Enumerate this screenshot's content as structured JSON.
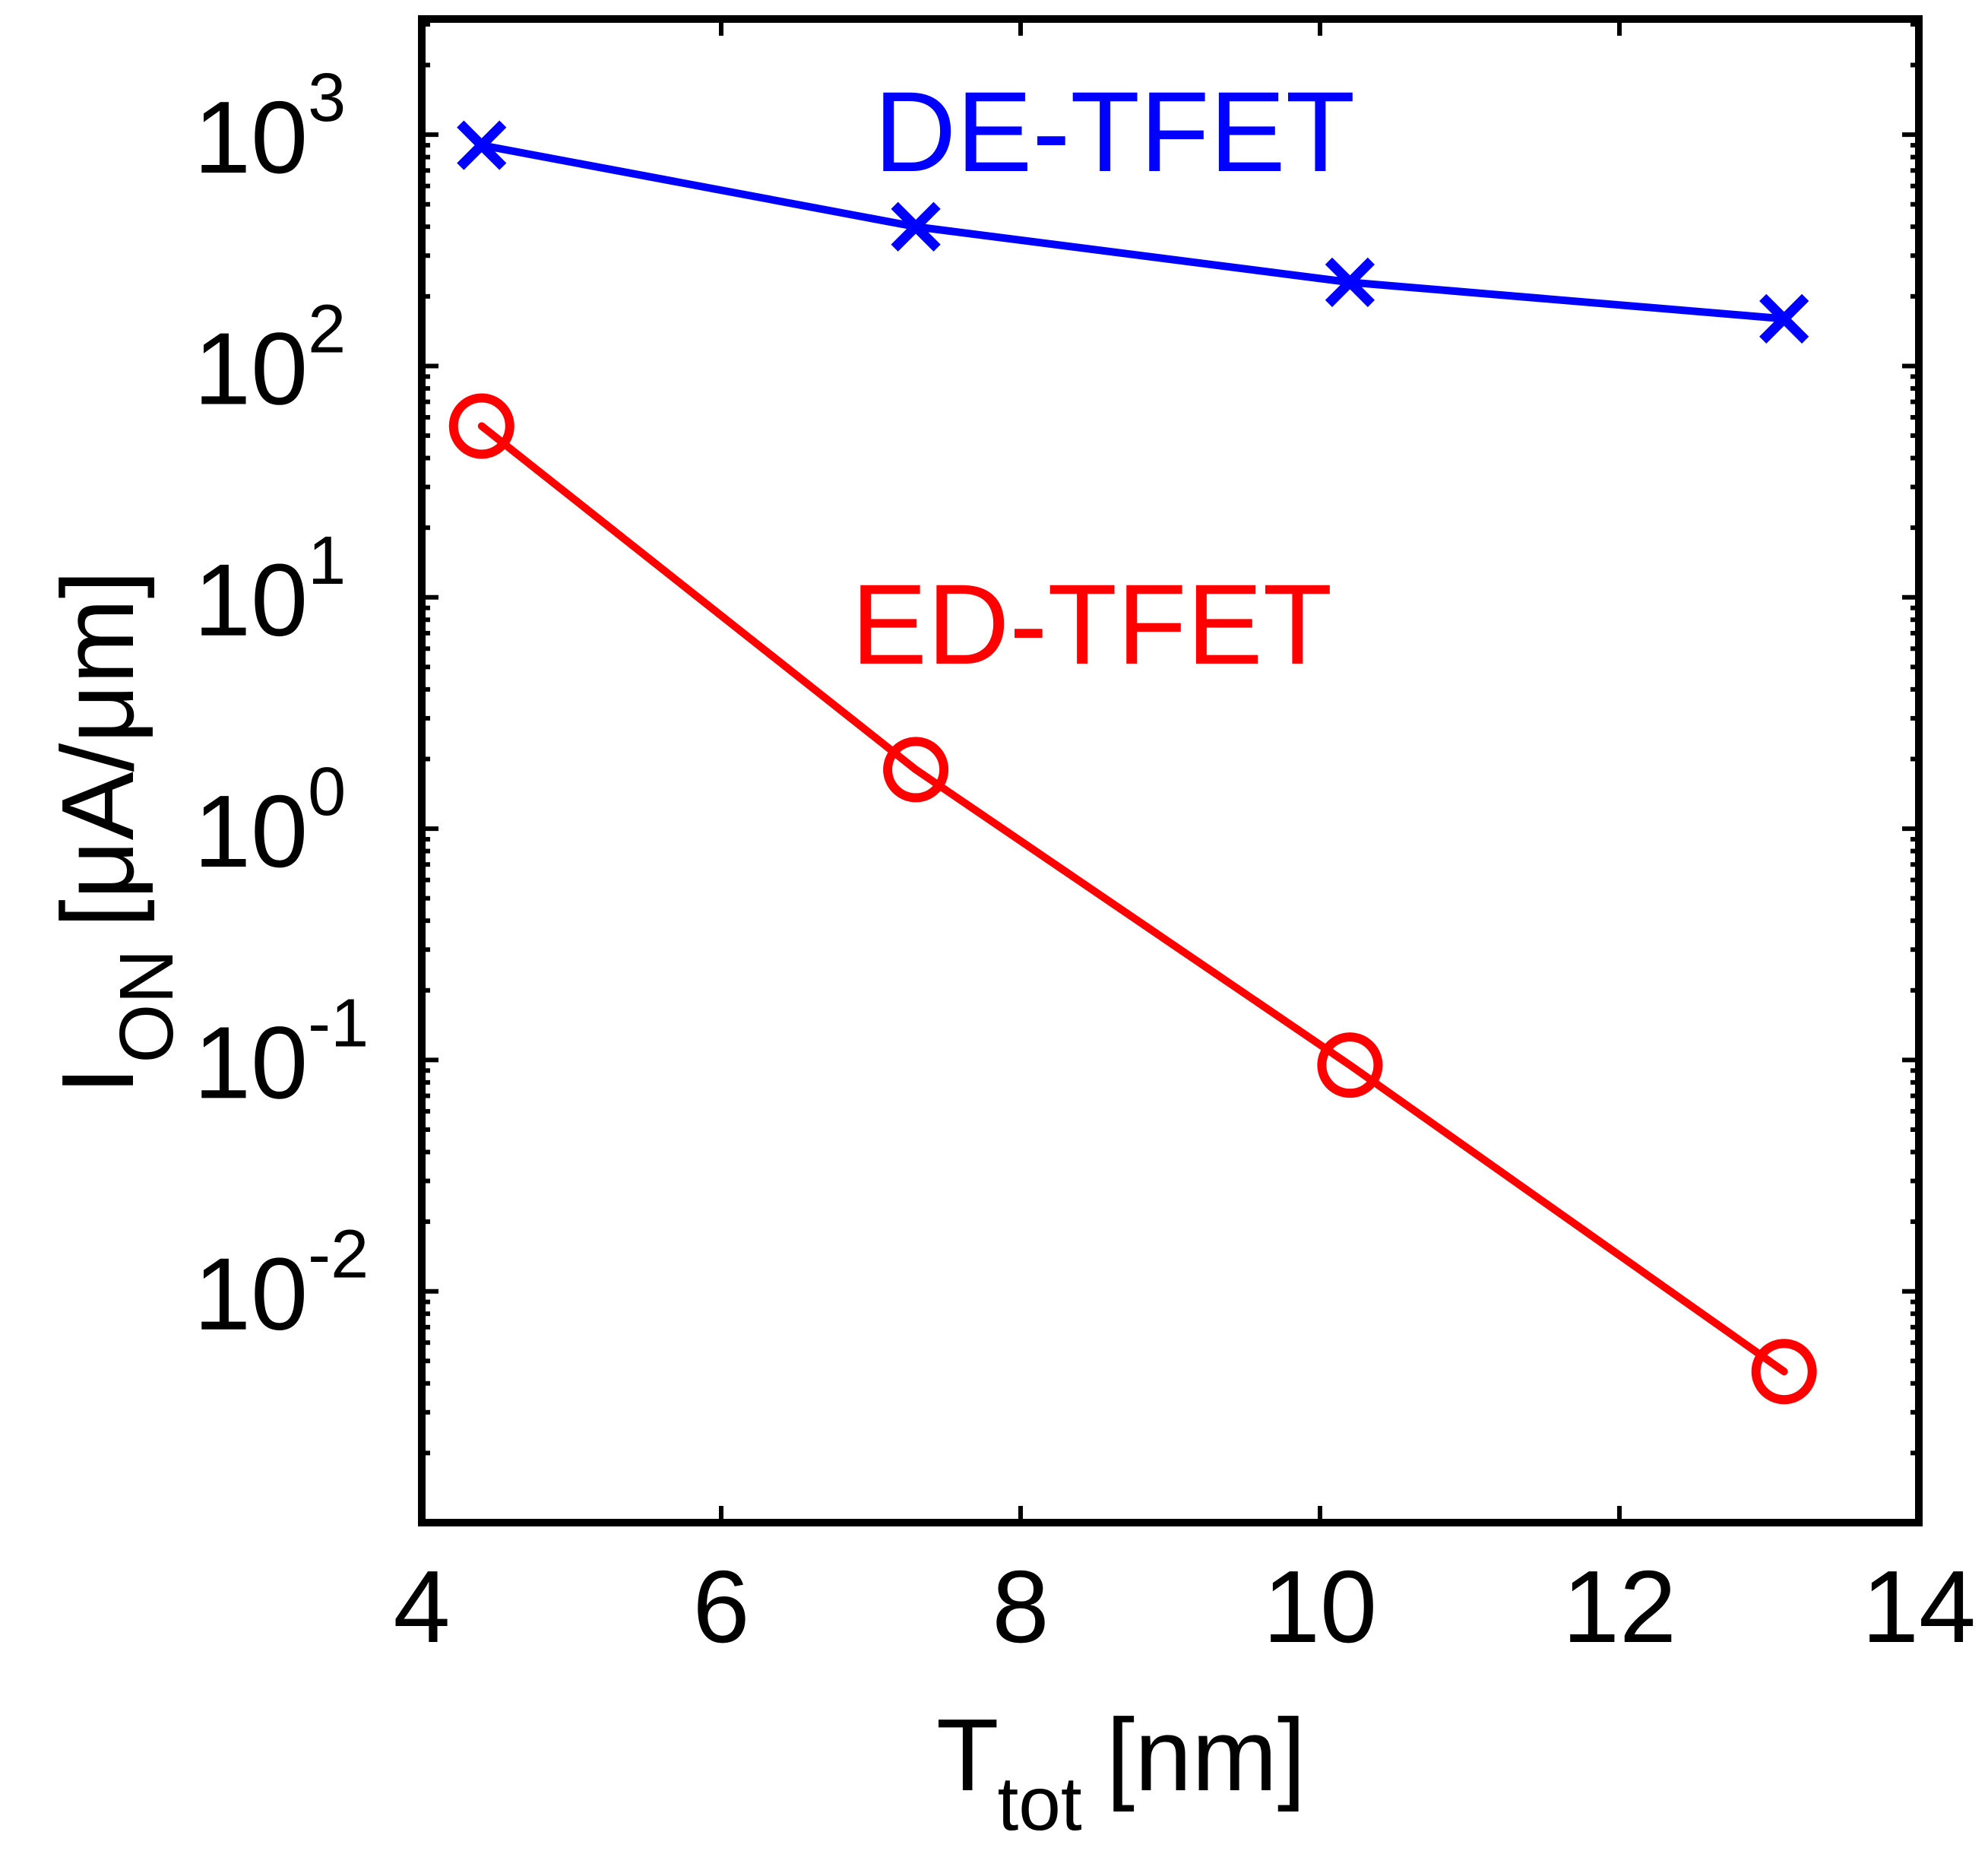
{
  "chart_data": {
    "type": "line",
    "title": "",
    "xlabel": {
      "main": "T",
      "sub": "tot",
      "unit": "[nm]"
    },
    "ylabel": {
      "main": "I",
      "sub": "ON",
      "unit": "[μA/μm]"
    },
    "xscale": "linear",
    "yscale": "log",
    "xlim": [
      4,
      14
    ],
    "ylim_exponent": [
      -3,
      3.5
    ],
    "xticks": [
      "4",
      "6",
      "8",
      "10",
      "12",
      "14"
    ],
    "yticks": [
      {
        "base": "10",
        "exp": "-2"
      },
      {
        "base": "10",
        "exp": "-1"
      },
      {
        "base": "10",
        "exp": "0"
      },
      {
        "base": "10",
        "exp": "1"
      },
      {
        "base": "10",
        "exp": "2"
      },
      {
        "base": "10",
        "exp": "3"
      }
    ],
    "grid": false,
    "series": [
      {
        "name": "DE-TFET",
        "color": "#0000ff",
        "marker": "x",
        "x": [
          4.4,
          7.3,
          10.2,
          13.1
        ],
        "y": [
          900,
          400,
          230,
          160
        ]
      },
      {
        "name": "ED-TFET",
        "color": "#ff0000",
        "marker": "o",
        "x": [
          4.4,
          7.3,
          10.2,
          13.1
        ],
        "y": [
          55,
          1.8,
          0.095,
          0.0045
        ]
      }
    ]
  }
}
